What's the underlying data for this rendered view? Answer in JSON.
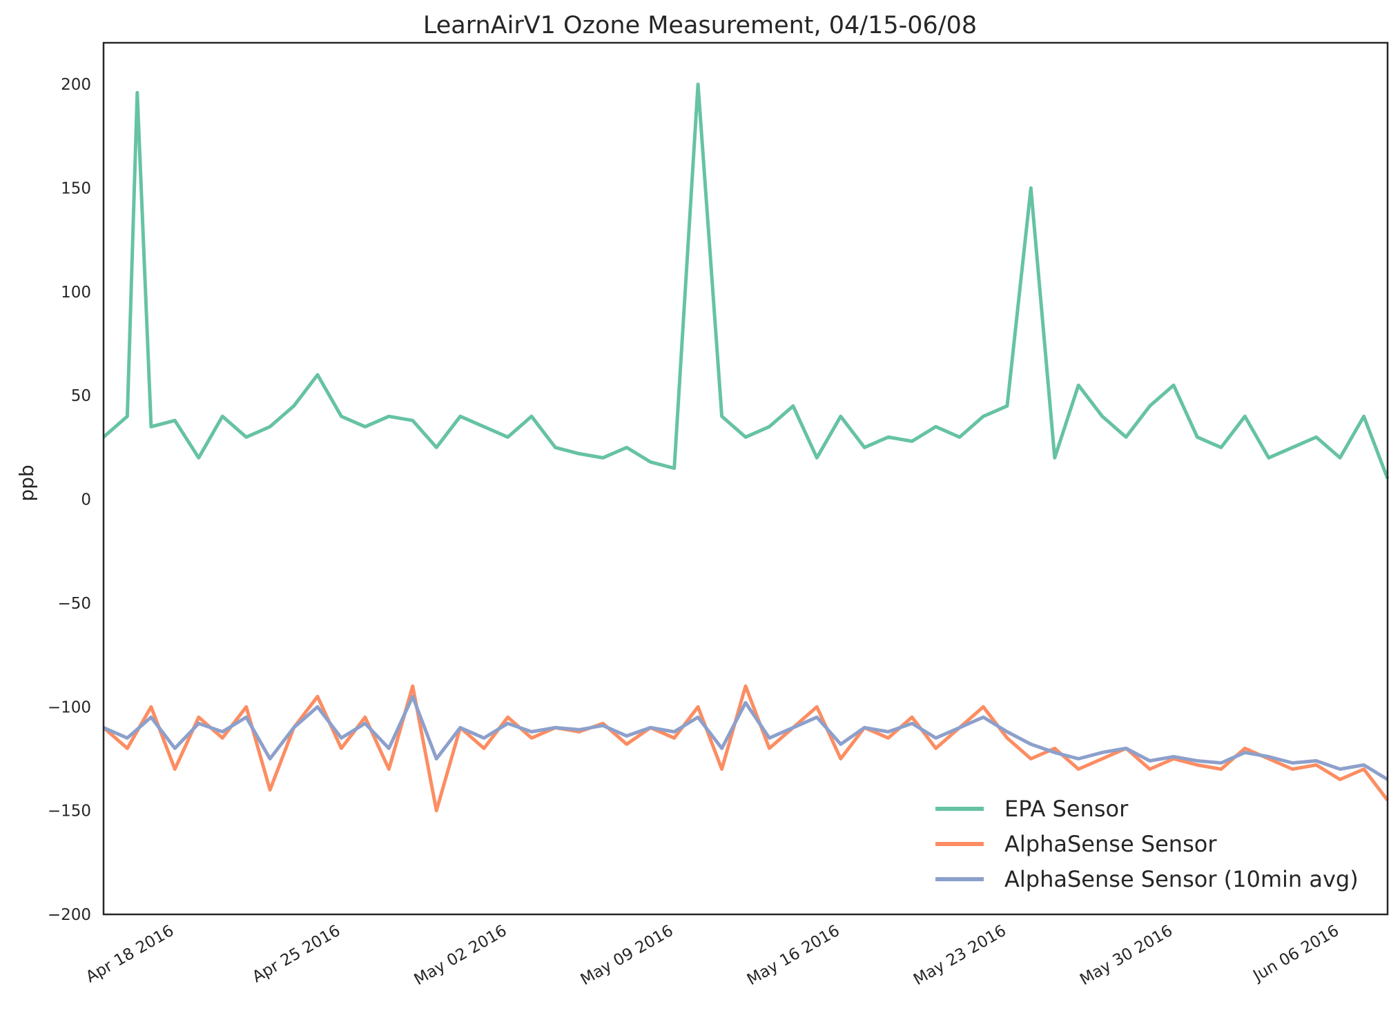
{
  "chart_data": {
    "type": "line",
    "title": "LearnAirV1 Ozone Measurement, 04/15-06/08",
    "xlabel": "",
    "ylabel": "ppb",
    "xlim": [
      "2016-04-15",
      "2016-06-08"
    ],
    "ylim": [
      -200,
      220
    ],
    "yticks": [
      -200,
      -150,
      -100,
      -50,
      0,
      50,
      100,
      150,
      200
    ],
    "ytick_labels": [
      "−200",
      "−150",
      "−100",
      "−50",
      "0",
      "50",
      "100",
      "150",
      "200"
    ],
    "xticks": [
      "2016-04-18",
      "2016-04-25",
      "2016-05-02",
      "2016-05-09",
      "2016-05-16",
      "2016-05-23",
      "2016-05-30",
      "2016-06-06"
    ],
    "xtick_labels": [
      "Apr 18 2016",
      "Apr 25 2016",
      "May 02 2016",
      "May 09 2016",
      "May 16 2016",
      "May 23 2016",
      "May 30 2016",
      "Jun 06 2016"
    ],
    "grid": false,
    "legend_position": "lower-right",
    "series": [
      {
        "name": "EPA Sensor",
        "color": "#66c2a5",
        "x": [
          "2016-04-15",
          "2016-04-16",
          "2016-04-16T10:00",
          "2016-04-17",
          "2016-04-18",
          "2016-04-19",
          "2016-04-20",
          "2016-04-21",
          "2016-04-22",
          "2016-04-23",
          "2016-04-24",
          "2016-04-25",
          "2016-04-26",
          "2016-04-27",
          "2016-04-28",
          "2016-04-29",
          "2016-04-30",
          "2016-05-01",
          "2016-05-02",
          "2016-05-03",
          "2016-05-04",
          "2016-05-05",
          "2016-05-06",
          "2016-05-07",
          "2016-05-08",
          "2016-05-09",
          "2016-05-10",
          "2016-05-11",
          "2016-05-12",
          "2016-05-13",
          "2016-05-14",
          "2016-05-15",
          "2016-05-16",
          "2016-05-17",
          "2016-05-18",
          "2016-05-19",
          "2016-05-20",
          "2016-05-21",
          "2016-05-22",
          "2016-05-23",
          "2016-05-24",
          "2016-05-25",
          "2016-05-26",
          "2016-05-27",
          "2016-05-28",
          "2016-05-29",
          "2016-05-30",
          "2016-05-31",
          "2016-06-01",
          "2016-06-02",
          "2016-06-03",
          "2016-06-04",
          "2016-06-05",
          "2016-06-06",
          "2016-06-07",
          "2016-06-08"
        ],
        "y": [
          30,
          40,
          196,
          35,
          38,
          20,
          40,
          30,
          35,
          45,
          60,
          40,
          35,
          40,
          38,
          25,
          40,
          35,
          30,
          40,
          25,
          22,
          20,
          25,
          18,
          15,
          200,
          40,
          30,
          35,
          45,
          20,
          40,
          25,
          30,
          28,
          35,
          30,
          40,
          45,
          150,
          20,
          55,
          40,
          30,
          45,
          55,
          30,
          25,
          40,
          20,
          25,
          30,
          20,
          40,
          10
        ]
      },
      {
        "name": "AlphaSense Sensor",
        "color": "#fc8d62",
        "x": [
          "2016-04-15",
          "2016-04-16",
          "2016-04-17",
          "2016-04-18",
          "2016-04-19",
          "2016-04-20",
          "2016-04-21",
          "2016-04-22",
          "2016-04-23",
          "2016-04-24",
          "2016-04-25",
          "2016-04-26",
          "2016-04-27",
          "2016-04-28",
          "2016-04-29",
          "2016-04-30",
          "2016-05-01",
          "2016-05-02",
          "2016-05-03",
          "2016-05-04",
          "2016-05-05",
          "2016-05-06",
          "2016-05-07",
          "2016-05-08",
          "2016-05-09",
          "2016-05-10",
          "2016-05-11",
          "2016-05-12",
          "2016-05-13",
          "2016-05-14",
          "2016-05-15",
          "2016-05-16",
          "2016-05-17",
          "2016-05-18",
          "2016-05-19",
          "2016-05-20",
          "2016-05-21",
          "2016-05-22",
          "2016-05-23",
          "2016-05-24",
          "2016-05-25",
          "2016-05-26",
          "2016-05-27",
          "2016-05-28",
          "2016-05-29",
          "2016-05-30",
          "2016-05-31",
          "2016-06-01",
          "2016-06-02",
          "2016-06-03",
          "2016-06-04",
          "2016-06-05",
          "2016-06-06",
          "2016-06-07",
          "2016-06-08"
        ],
        "y": [
          -110,
          -120,
          -100,
          -130,
          -105,
          -115,
          -100,
          -140,
          -110,
          -95,
          -120,
          -105,
          -130,
          -90,
          -150,
          -110,
          -120,
          -105,
          -115,
          -110,
          -112,
          -108,
          -118,
          -110,
          -115,
          -100,
          -130,
          -90,
          -120,
          -110,
          -100,
          -125,
          -110,
          -115,
          -105,
          -120,
          -110,
          -100,
          -115,
          -125,
          -120,
          -130,
          -125,
          -120,
          -130,
          -125,
          -128,
          -130,
          -120,
          -125,
          -130,
          -128,
          -135,
          -130,
          -145
        ]
      },
      {
        "name": "AlphaSense Sensor (10min avg)",
        "color": "#8da0cb",
        "x": [
          "2016-04-15",
          "2016-04-16",
          "2016-04-17",
          "2016-04-18",
          "2016-04-19",
          "2016-04-20",
          "2016-04-21",
          "2016-04-22",
          "2016-04-23",
          "2016-04-24",
          "2016-04-25",
          "2016-04-26",
          "2016-04-27",
          "2016-04-28",
          "2016-04-29",
          "2016-04-30",
          "2016-05-01",
          "2016-05-02",
          "2016-05-03",
          "2016-05-04",
          "2016-05-05",
          "2016-05-06",
          "2016-05-07",
          "2016-05-08",
          "2016-05-09",
          "2016-05-10",
          "2016-05-11",
          "2016-05-12",
          "2016-05-13",
          "2016-05-14",
          "2016-05-15",
          "2016-05-16",
          "2016-05-17",
          "2016-05-18",
          "2016-05-19",
          "2016-05-20",
          "2016-05-21",
          "2016-05-22",
          "2016-05-23",
          "2016-05-24",
          "2016-05-25",
          "2016-05-26",
          "2016-05-27",
          "2016-05-28",
          "2016-05-29",
          "2016-05-30",
          "2016-05-31",
          "2016-06-01",
          "2016-06-02",
          "2016-06-03",
          "2016-06-04",
          "2016-06-05",
          "2016-06-06",
          "2016-06-07",
          "2016-06-08"
        ],
        "y": [
          -110,
          -115,
          -105,
          -120,
          -108,
          -112,
          -105,
          -125,
          -110,
          -100,
          -115,
          -108,
          -120,
          -95,
          -125,
          -110,
          -115,
          -108,
          -112,
          -110,
          -111,
          -109,
          -114,
          -110,
          -112,
          -105,
          -120,
          -98,
          -115,
          -110,
          -105,
          -118,
          -110,
          -112,
          -108,
          -115,
          -110,
          -105,
          -112,
          -118,
          -122,
          -125,
          -122,
          -120,
          -126,
          -124,
          -126,
          -127,
          -122,
          -124,
          -127,
          -126,
          -130,
          -128,
          -135
        ]
      }
    ]
  }
}
